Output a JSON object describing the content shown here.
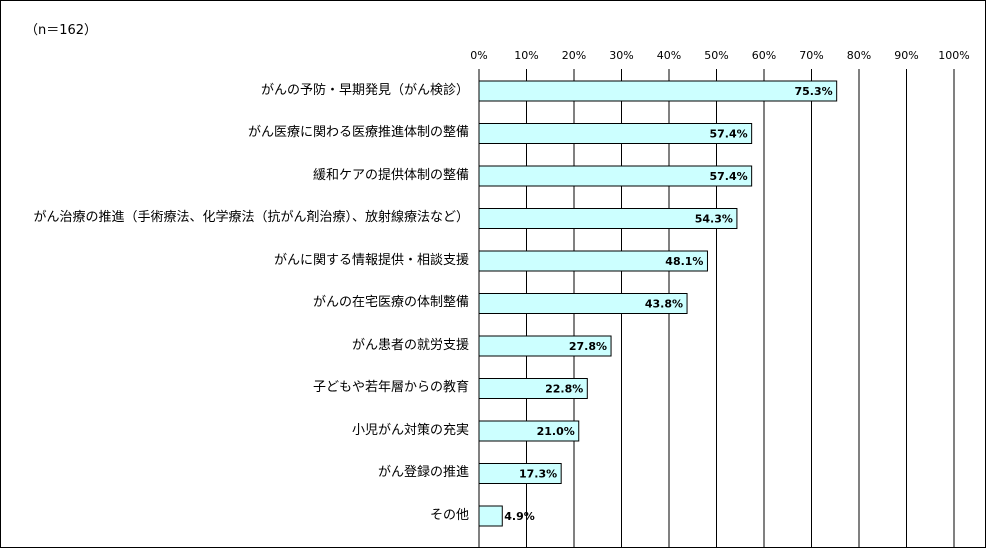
{
  "sample_note": "（n＝162）",
  "colors": {
    "bar_fill": "#ccffff",
    "bar_stroke": "#000000",
    "grid": "#000000",
    "background": "#ffffff"
  },
  "chart_data": {
    "type": "bar",
    "orientation": "horizontal",
    "title": "",
    "xlabel": "",
    "ylabel": "",
    "xlim": [
      0,
      100
    ],
    "x_ticks": [
      "0%",
      "10%",
      "20%",
      "30%",
      "40%",
      "50%",
      "60%",
      "70%",
      "80%",
      "90%",
      "100%"
    ],
    "grid": true,
    "categories": [
      "がんの予防・早期発見（がん検診）",
      "がん医療に関わる医療推進体制の整備",
      "緩和ケアの提供体制の整備",
      "がん治療の推進（手術療法、化学療法（抗がん剤治療）、放射線療法など）",
      "がんに関する情報提供・相談支援",
      "がんの在宅医療の体制整備",
      "がん患者の就労支援",
      "子どもや若年層からの教育",
      "小児がん対策の充実",
      "がん登録の推進",
      "その他"
    ],
    "values": [
      75.3,
      57.4,
      57.4,
      54.3,
      48.1,
      43.8,
      27.8,
      22.8,
      21.0,
      17.3,
      4.9
    ],
    "value_labels": [
      "75.3%",
      "57.4%",
      "57.4%",
      "54.3%",
      "48.1%",
      "43.8%",
      "27.8%",
      "22.8%",
      "21.0%",
      "17.3%",
      "4.9%"
    ]
  }
}
